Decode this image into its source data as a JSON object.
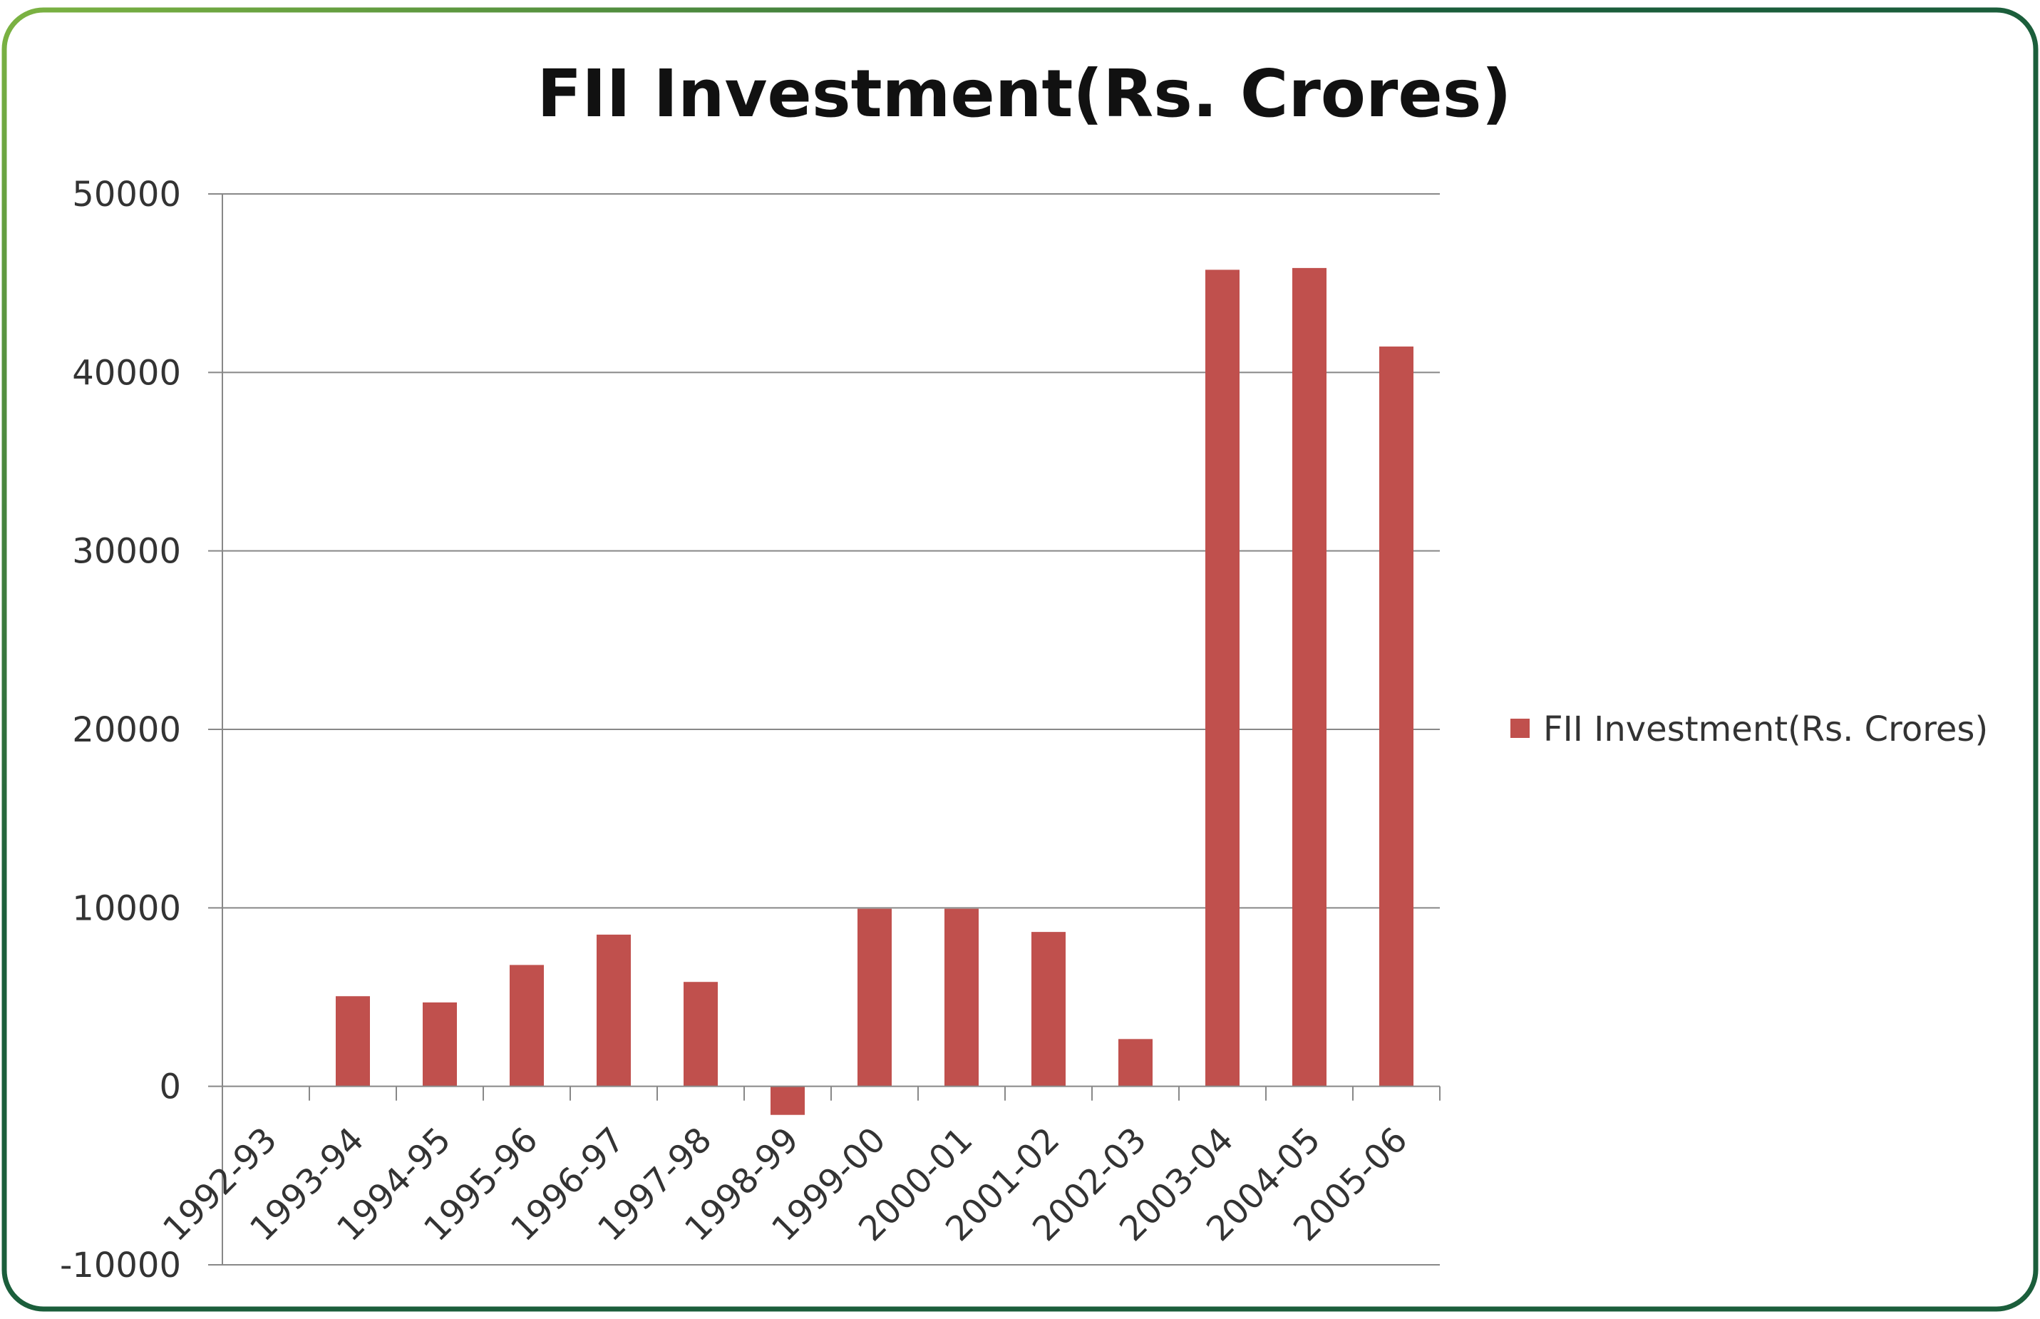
{
  "chart_data": {
    "type": "bar",
    "title": "FII Investment(Rs. Crores)",
    "xlabel": "",
    "ylabel": "",
    "ylim": [
      -10000,
      50000
    ],
    "yticks": [
      "-10000",
      "0",
      "10000",
      "20000",
      "30000",
      "40000",
      "50000"
    ],
    "grid": true,
    "legend_position": "right",
    "categories": [
      "1992-93",
      "1993-94",
      "1994-95",
      "1995-96",
      "1996-97",
      "1997-98",
      "1998-99",
      "1999-00",
      "2000-01",
      "2001-02",
      "2002-03",
      "2003-04",
      "2004-05",
      "2005-06"
    ],
    "series": [
      {
        "name": "FII Investment(Rs. Crores)",
        "color": "#c0504d",
        "values": [
          13,
          5050,
          4700,
          6800,
          8500,
          5850,
          -1600,
          9950,
          9950,
          8650,
          2650,
          45750,
          45850,
          41450
        ]
      }
    ]
  },
  "frame_colors": [
    "#7cb342",
    "#1b5e3b"
  ]
}
